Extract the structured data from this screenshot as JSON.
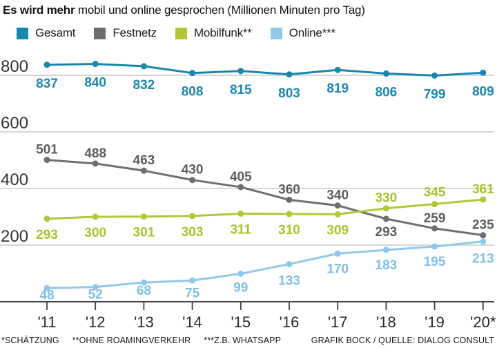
{
  "header": {
    "title_bold": "Es wird mehr",
    "title_rest": " mobil und online gesprochen (Millionen Minuten pro Tag)"
  },
  "chart_data": {
    "type": "line",
    "title": "Es wird mehr mobil und online gesprochen (Millionen Minuten pro Tag)",
    "unit": "Millionen Minuten pro Tag",
    "categories": [
      "'11",
      "'12",
      "'13",
      "'14",
      "'15",
      "'16",
      "'17",
      "'18",
      "'19",
      "'20*"
    ],
    "series": [
      {
        "name": "Gesamt",
        "color": "#1886ad",
        "label_color": "#1a87ae",
        "values": [
          837,
          840,
          832,
          808,
          815,
          803,
          819,
          806,
          799,
          809
        ]
      },
      {
        "name": "Festnetz",
        "color": "#6e6e6e",
        "label_color": "#5c5c5c",
        "values": [
          501,
          488,
          463,
          430,
          405,
          360,
          340,
          293,
          259,
          235
        ]
      },
      {
        "name": "Mobilfunk**",
        "color": "#b2c636",
        "label_color": "#abc22c",
        "values": [
          293,
          300,
          301,
          303,
          311,
          310,
          309,
          330,
          345,
          361
        ]
      },
      {
        "name": "Online***",
        "color": "#8ec8ea",
        "label_color": "#7fc1e5",
        "values": [
          48,
          52,
          68,
          75,
          99,
          133,
          170,
          183,
          195,
          213
        ]
      }
    ],
    "yticks": [
      200,
      400,
      600,
      800
    ],
    "ylim": [
      0,
      880
    ],
    "grid": true,
    "legend_position": "top",
    "xlabel": "",
    "ylabel": "",
    "colors": {
      "grid_line": "#d0d0d0",
      "axis_line": "#3f3f3f",
      "ytick_label": "#333333",
      "xtick_label": "#262626"
    }
  },
  "footer": {
    "footnotes": [
      "*SCHÄTZUNG",
      "**OHNE ROAMINGVERKEHR",
      "***Z.B. WHATSAPP"
    ],
    "credit": "GRAFIK BOCK / QUELLE: DIALOG CONSULT"
  }
}
